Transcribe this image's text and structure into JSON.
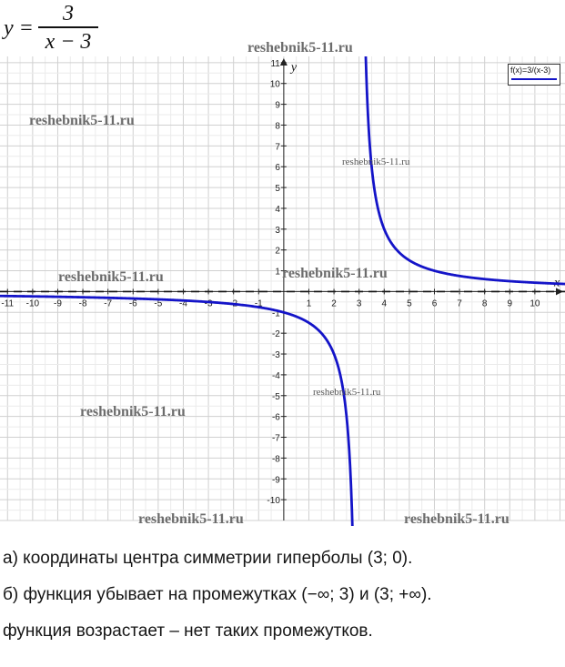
{
  "formula": {
    "lhs": "y =",
    "numerator": "3",
    "denominator": "x − 3"
  },
  "chart_data": {
    "type": "line",
    "title": "",
    "xlabel": "x",
    "ylabel": "y",
    "xlim": [
      -11.3,
      11.2
    ],
    "ylim": [
      -11,
      11.3
    ],
    "x_ticks": [
      -11,
      -10,
      -9,
      -8,
      -7,
      -6,
      -5,
      -4,
      -3,
      -2,
      -1,
      1,
      2,
      3,
      4,
      5,
      6,
      7,
      8,
      9,
      10
    ],
    "x_tick_labels": [
      "-11",
      "-10",
      "-9",
      "-8",
      "-7",
      "-6",
      "-5",
      "-4",
      "-3",
      "-2",
      "-1",
      "1",
      "2",
      "3",
      "4",
      "5",
      "6",
      "7",
      "8",
      "9",
      "10"
    ],
    "y_ticks": [
      11,
      10,
      9,
      8,
      7,
      6,
      5,
      4,
      3,
      2,
      1,
      -1,
      -2,
      -3,
      -4,
      -5,
      -6,
      -7,
      -8,
      -9,
      -10
    ],
    "y_tick_labels": [
      "11",
      "10",
      "9",
      "8",
      "7",
      "6",
      "5",
      "4",
      "3",
      "2",
      "1",
      "-1",
      "-2",
      "-3",
      "-4",
      "-5",
      "-6",
      "-7",
      "-8",
      "-9",
      "-10"
    ],
    "grid": true,
    "legend_position": "top-right",
    "series": [
      {
        "name": "f(x)=3/(x-3)",
        "color": "#1414c8",
        "function": "3/(x-3)"
      }
    ],
    "asymptotes": [
      {
        "orientation": "vertical",
        "x": 3
      },
      {
        "orientation": "horizontal",
        "y": 0
      }
    ]
  },
  "watermarks": [
    "reshebnik5-11.ru",
    "reshebnik5-11.ru",
    "reshebnik5-11.ru",
    "reshebnik5-11.ru",
    "reshebnik5-11.ru",
    "reshebnik5-11.ru",
    "reshebnik5-11.ru",
    "reshebnik5-11.ru",
    "reshebnik5-11.ru"
  ],
  "answers": {
    "a": "а) координаты центра симметрии гиперболы (3; 0).",
    "b": "б) функция убывает на промежутках (−∞; 3) и (3;  +∞).",
    "c": "функция возрастает – нет таких промежутков."
  }
}
